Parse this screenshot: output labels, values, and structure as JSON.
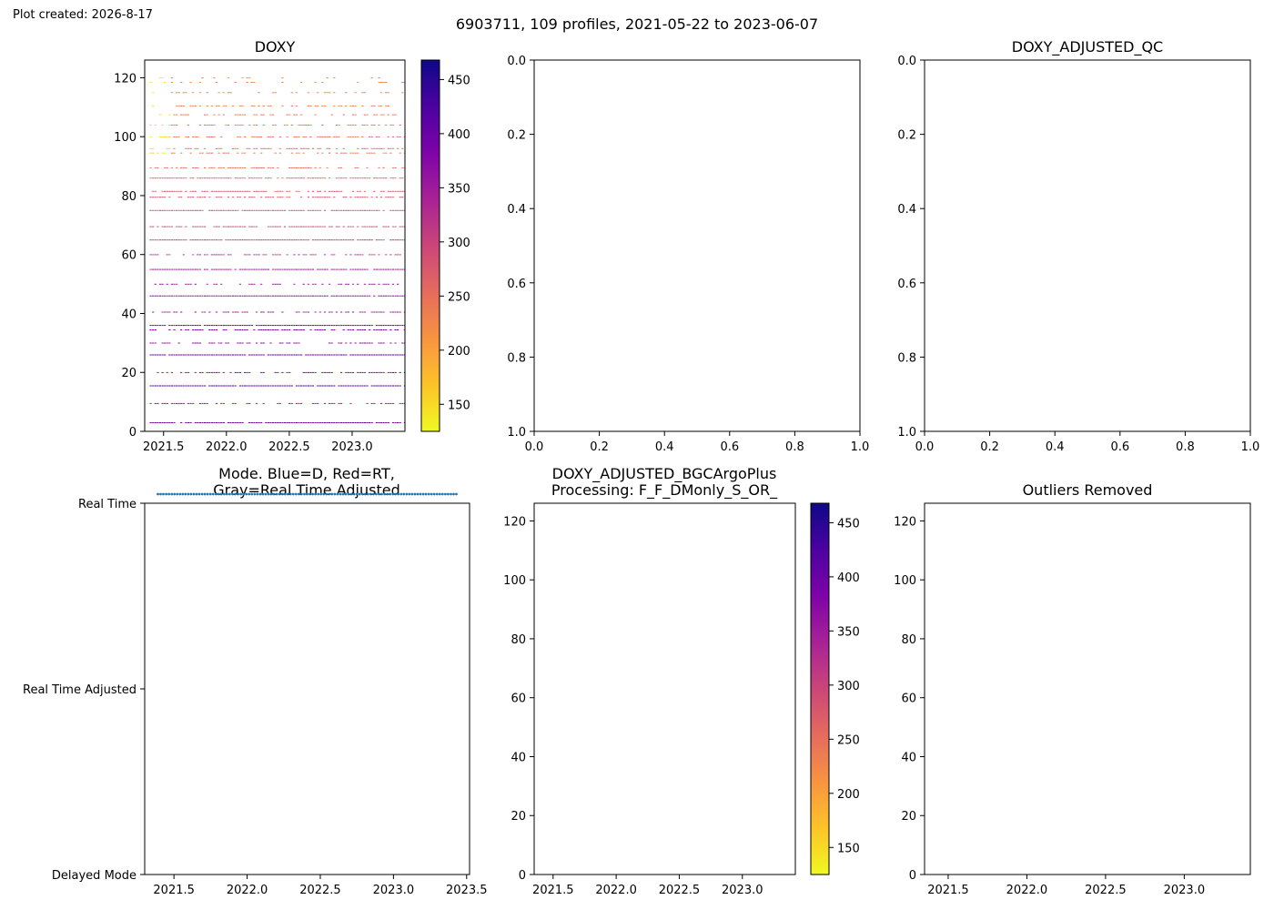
{
  "figure": {
    "created_label": "Plot created: 2026-8-17",
    "suptitle": "6903711, 109 profiles, 2021-05-22 to 2023-06-07"
  },
  "colormap": {
    "name": "plasma_r",
    "stops": [
      "#f0f921",
      "#fdc328",
      "#f89441",
      "#e56b5d",
      "#cb4679",
      "#a82296",
      "#7e03a8",
      "#4c02a1",
      "#0d0887"
    ],
    "ticks": [
      150,
      200,
      250,
      300,
      350,
      400,
      450
    ],
    "range": [
      125,
      468
    ]
  },
  "chart_data": [
    {
      "id": "doxy",
      "type": "heatmap",
      "title": "DOXY",
      "xlim": [
        2021.35,
        2023.42
      ],
      "ylim": [
        126,
        0
      ],
      "xticks": [
        2021.5,
        2022.0,
        2022.5,
        2023.0
      ],
      "xtick_labels": [
        "2021.5",
        "2022.0",
        "2022.5",
        "2023.0"
      ],
      "yticks": [
        0,
        20,
        40,
        60,
        80,
        100,
        120
      ],
      "ytick_labels": [
        "0",
        "20",
        "40",
        "60",
        "80",
        "100",
        "120"
      ],
      "time_range": [
        2021.39,
        2023.43
      ],
      "n_profiles": 109,
      "depth_levels": [
        {
          "depth": 4.5,
          "value": 385,
          "coverage": 0.92
        },
        {
          "depth": 11,
          "value": 360,
          "coverage": 0.5
        },
        {
          "depth": 17,
          "value": 410,
          "coverage": 0.95
        },
        {
          "depth": 21.5,
          "value": 375,
          "coverage": 0.55
        },
        {
          "depth": 27.5,
          "value": 405,
          "coverage": 0.95
        },
        {
          "depth": 31.5,
          "value": 370,
          "coverage": 0.5
        },
        {
          "depth": 36,
          "value": 380,
          "coverage": 0.55
        },
        {
          "depth": 37.5,
          "value": 395,
          "coverage": 0.95
        },
        {
          "depth": 42,
          "value": 345,
          "coverage": 0.5
        },
        {
          "depth": 47.5,
          "value": 365,
          "coverage": 0.95
        },
        {
          "depth": 51.5,
          "value": 350,
          "coverage": 0.5
        },
        {
          "depth": 56.5,
          "value": 345,
          "coverage": 0.9
        },
        {
          "depth": 61.5,
          "value": 310,
          "coverage": 0.55
        },
        {
          "depth": 66.5,
          "value": 300,
          "coverage": 0.92
        },
        {
          "depth": 71,
          "value": 290,
          "coverage": 0.65
        },
        {
          "depth": 76.5,
          "value": 280,
          "coverage": 0.85
        },
        {
          "depth": 81,
          "value": 275,
          "coverage": 0.6
        },
        {
          "depth": 83,
          "value": 270,
          "coverage": 0.7
        },
        {
          "depth": 87.5,
          "value": 255,
          "coverage": 0.85
        },
        {
          "depth": 91,
          "value": 250,
          "coverage": 0.55
        },
        {
          "depth": 96,
          "value": 240,
          "coverage": 0.45
        },
        {
          "depth": 97.5,
          "value": 255,
          "coverage": 0.55
        },
        {
          "depth": 101.5,
          "value": 248,
          "coverage": 0.5
        },
        {
          "depth": 105.5,
          "value": 245,
          "coverage": 0.45
        },
        {
          "depth": 109,
          "value": 240,
          "coverage": 0.4
        },
        {
          "depth": 112,
          "value": 235,
          "coverage": 0.35
        },
        {
          "depth": 116.5,
          "value": 232,
          "coverage": 0.25
        },
        {
          "depth": 120,
          "value": 225,
          "coverage": 0.15
        },
        {
          "depth": 121.5,
          "value": 230,
          "coverage": 0.15
        }
      ],
      "low_oxygen_patch": {
        "t0": 2021.39,
        "t1": 2021.55,
        "d0": 94,
        "d1": 122,
        "value": 150
      }
    },
    {
      "id": "empty1",
      "type": "line",
      "title": "",
      "xlim": [
        0,
        1
      ],
      "ylim": [
        0,
        1
      ],
      "xticks": [
        0,
        0.2,
        0.4,
        0.6,
        0.8,
        1.0
      ],
      "xtick_labels": [
        "0.0",
        "0.2",
        "0.4",
        "0.6",
        "0.8",
        "1.0"
      ],
      "yticks": [
        0,
        0.2,
        0.4,
        0.6,
        0.8,
        1.0
      ],
      "ytick_labels": [
        "0.0",
        "0.2",
        "0.4",
        "0.6",
        "0.8",
        "1.0"
      ]
    },
    {
      "id": "adjusted_qc",
      "type": "line",
      "title": "DOXY_ADJUSTED_QC",
      "xlim": [
        0,
        1
      ],
      "ylim": [
        0,
        1
      ],
      "xticks": [
        0,
        0.2,
        0.4,
        0.6,
        0.8,
        1.0
      ],
      "xtick_labels": [
        "0.0",
        "0.2",
        "0.4",
        "0.6",
        "0.8",
        "1.0"
      ],
      "yticks": [
        0,
        0.2,
        0.4,
        0.6,
        0.8,
        1.0
      ],
      "ytick_labels": [
        "0.0",
        "0.2",
        "0.4",
        "0.6",
        "0.8",
        "1.0"
      ]
    },
    {
      "id": "mode",
      "type": "scatter",
      "title_lines": [
        "Mode. Blue=D, Red=RT,",
        "Gray=Real Time Adjusted"
      ],
      "xlim": [
        2021.3,
        2023.52
      ],
      "ylim": [
        0,
        2
      ],
      "xticks": [
        2021.5,
        2022.0,
        2022.5,
        2023.0,
        2023.5
      ],
      "xtick_labels": [
        "2021.5",
        "2022.0",
        "2022.5",
        "2023.0",
        "2023.5"
      ],
      "yticks": [
        0,
        1,
        2
      ],
      "ytick_labels": [
        "Real Time",
        "Real Time Adjusted",
        "Delayed Mode"
      ],
      "point_color": "#1f77b4",
      "x_start": 2021.39,
      "x_end": 2023.43,
      "n_points": 109,
      "y": 0
    },
    {
      "id": "bgc_adjusted",
      "type": "heatmap",
      "title_lines": [
        "DOXY_ADJUSTED_BGCArgoPlus",
        "Processing: F_F_DMonly_S_OR_"
      ],
      "xlim": [
        2021.35,
        2023.42
      ],
      "ylim": [
        126,
        0
      ],
      "xticks": [
        2021.5,
        2022.0,
        2022.5,
        2023.0
      ],
      "xtick_labels": [
        "2021.5",
        "2022.0",
        "2022.5",
        "2023.0"
      ],
      "yticks": [
        0,
        20,
        40,
        60,
        80,
        100,
        120
      ],
      "ytick_labels": [
        "0",
        "20",
        "40",
        "60",
        "80",
        "100",
        "120"
      ],
      "values": []
    },
    {
      "id": "outliers",
      "type": "heatmap",
      "title": "Outliers Removed",
      "xlim": [
        2021.35,
        2023.42
      ],
      "ylim": [
        126,
        0
      ],
      "xticks": [
        2021.5,
        2022.0,
        2022.5,
        2023.0
      ],
      "xtick_labels": [
        "2021.5",
        "2022.0",
        "2022.5",
        "2023.0"
      ],
      "yticks": [
        0,
        20,
        40,
        60,
        80,
        100,
        120
      ],
      "ytick_labels": [
        "0",
        "20",
        "40",
        "60",
        "80",
        "100",
        "120"
      ],
      "values": []
    }
  ]
}
